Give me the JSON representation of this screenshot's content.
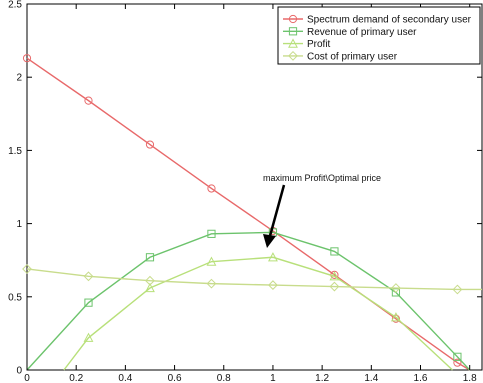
{
  "chart_data": {
    "type": "line",
    "title": "",
    "xlabel": "",
    "ylabel": "",
    "xlim": [
      0,
      1.85
    ],
    "ylim": [
      0,
      2.5
    ],
    "grid": false,
    "legend_position": "top-right",
    "x_ticks": [
      "0",
      "0.2",
      "0.4",
      "0.6",
      "0.8",
      "1",
      "1.2",
      "1.4",
      "1.6",
      "1.8"
    ],
    "y_ticks": [
      "0",
      "0.5",
      "1",
      "1.5",
      "2",
      "2.5"
    ],
    "series": [
      {
        "name": "Spectrum demand of secondary user",
        "color": "#e8696a",
        "marker": "circle",
        "x": [
          0,
          0.25,
          0.5,
          0.75,
          1.0,
          1.25,
          1.5,
          1.75,
          1.8
        ],
        "y": [
          2.13,
          1.84,
          1.54,
          1.24,
          0.95,
          0.65,
          0.35,
          0.05,
          0
        ]
      },
      {
        "name": "Revenue of primary user",
        "color": "#6cc36c",
        "marker": "square",
        "x": [
          0,
          0.25,
          0.5,
          0.75,
          1.0,
          1.25,
          1.5,
          1.75,
          1.8
        ],
        "y": [
          0,
          0.46,
          0.77,
          0.93,
          0.94,
          0.81,
          0.53,
          0.09,
          0
        ]
      },
      {
        "name": "Profit",
        "color": "#b8e07a",
        "marker": "triangle",
        "x": [
          0.15,
          0.25,
          0.5,
          0.75,
          1.0,
          1.25,
          1.5,
          1.73
        ],
        "y": [
          0,
          0.22,
          0.56,
          0.74,
          0.77,
          0.64,
          0.36,
          0
        ]
      },
      {
        "name": "Cost of primary user",
        "color": "#c8dc8c",
        "marker": "diamond",
        "x": [
          0,
          0.25,
          0.5,
          0.75,
          1.0,
          1.25,
          1.5,
          1.75,
          1.85
        ],
        "y": [
          0.69,
          0.64,
          0.61,
          0.59,
          0.58,
          0.57,
          0.56,
          0.55,
          0.55
        ]
      }
    ],
    "annotation": {
      "text": "maximum Profit\\Optimal price",
      "x": 1.0,
      "y": 0.77
    }
  }
}
